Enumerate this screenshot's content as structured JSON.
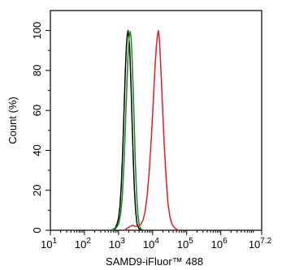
{
  "chart_data": {
    "type": "line",
    "title": "",
    "xlabel": "SAMD9-iFluor™ 488",
    "ylabel": "Count  (%)",
    "x_scale": "log",
    "xlim": [
      10,
      15848931.92
    ],
    "ylim": [
      0,
      110
    ],
    "x_tick_labels": [
      {
        "base": "10",
        "exp": "1",
        "value": 10
      },
      {
        "base": "10",
        "exp": "2",
        "value": 100
      },
      {
        "base": "10",
        "exp": "3",
        "value": 1000
      },
      {
        "base": "10",
        "exp": "4",
        "value": 10000
      },
      {
        "base": "10",
        "exp": "5",
        "value": 100000
      },
      {
        "base": "10",
        "exp": "6",
        "value": 1000000
      },
      {
        "base": "10",
        "exp": "7.2",
        "value": 15848931.92
      }
    ],
    "y_ticks": [
      0,
      20,
      40,
      60,
      80,
      100
    ],
    "y_tick_labels": [
      "0",
      "20",
      "40",
      "60",
      "80",
      "100"
    ],
    "grid": false,
    "series": [
      {
        "color": "#000000",
        "points": [
          [
            600,
            0
          ],
          [
            700,
            0.4
          ],
          [
            800,
            1
          ],
          [
            900,
            3
          ],
          [
            1000,
            6
          ],
          [
            1100,
            12
          ],
          [
            1200,
            22
          ],
          [
            1300,
            36
          ],
          [
            1400,
            52
          ],
          [
            1500,
            68
          ],
          [
            1600,
            82
          ],
          [
            1700,
            92
          ],
          [
            1800,
            97.5
          ],
          [
            1900,
            100
          ],
          [
            2000,
            97
          ],
          [
            2100,
            92
          ],
          [
            2200,
            84
          ],
          [
            2350,
            70
          ],
          [
            2500,
            54
          ],
          [
            2700,
            36
          ],
          [
            2900,
            21
          ],
          [
            3200,
            9
          ],
          [
            3500,
            3
          ],
          [
            3900,
            1
          ],
          [
            4300,
            0.3
          ],
          [
            5000,
            0
          ]
        ]
      },
      {
        "color": "#1a8a1a",
        "points": [
          [
            600,
            0
          ],
          [
            800,
            0.5
          ],
          [
            1000,
            3
          ],
          [
            1150,
            8
          ],
          [
            1300,
            18
          ],
          [
            1450,
            34
          ],
          [
            1600,
            54
          ],
          [
            1750,
            72
          ],
          [
            1900,
            88
          ],
          [
            2050,
            97
          ],
          [
            2200,
            99.5
          ],
          [
            2350,
            96
          ],
          [
            2500,
            86
          ],
          [
            2700,
            70
          ],
          [
            2900,
            52
          ],
          [
            3100,
            34
          ],
          [
            3400,
            18
          ],
          [
            3700,
            8
          ],
          [
            4100,
            2
          ],
          [
            4600,
            0.5
          ],
          [
            5500,
            0
          ]
        ]
      },
      {
        "color": "#e02020",
        "points": [
          [
            1500,
            0
          ],
          [
            1800,
            1
          ],
          [
            2200,
            2
          ],
          [
            2600,
            2.5
          ],
          [
            3000,
            2
          ],
          [
            3400,
            2
          ],
          [
            3900,
            2
          ],
          [
            4500,
            3
          ],
          [
            5200,
            5
          ],
          [
            6000,
            9
          ],
          [
            7000,
            18
          ],
          [
            8000,
            30
          ],
          [
            9000,
            44
          ],
          [
            10000,
            58
          ],
          [
            11000,
            72
          ],
          [
            12000,
            84
          ],
          [
            13000,
            93
          ],
          [
            14000,
            98
          ],
          [
            14800,
            100
          ],
          [
            15500,
            97
          ],
          [
            16500,
            90
          ],
          [
            18000,
            76
          ],
          [
            20000,
            58
          ],
          [
            22000,
            42
          ],
          [
            25000,
            26
          ],
          [
            28000,
            14
          ],
          [
            32000,
            7
          ],
          [
            37000,
            3
          ],
          [
            43000,
            1.5
          ],
          [
            50000,
            0.5
          ],
          [
            60000,
            0
          ]
        ]
      }
    ]
  }
}
